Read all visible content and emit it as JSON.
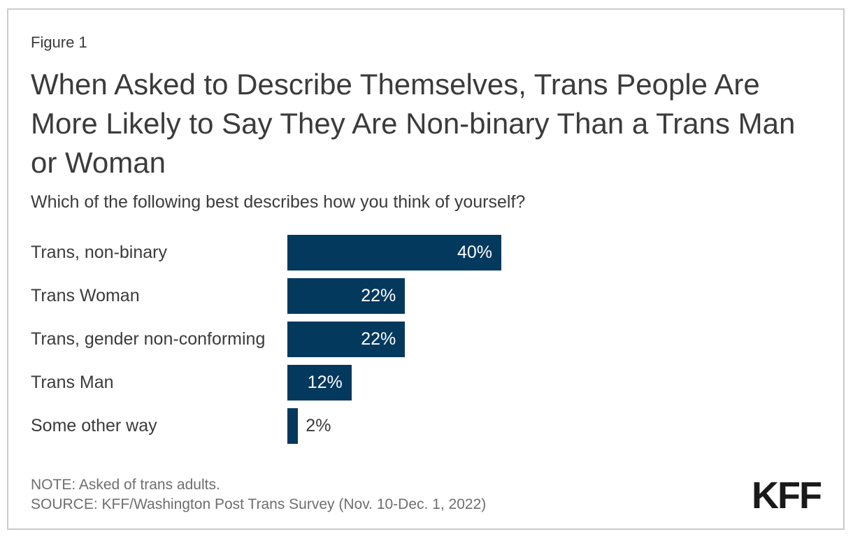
{
  "figure_label": "Figure 1",
  "title": "When Asked to Describe Themselves, Trans People Are More Likely to Say They Are Non-binary Than a Trans Man or Woman",
  "subtitle": "Which of the following best describes how you think of yourself?",
  "footer": {
    "note": "NOTE: Asked of trans adults.",
    "source": "SOURCE: KFF/Washington Post Trans Survey (Nov. 10-Dec. 1, 2022)",
    "logo_text": "KFF"
  },
  "colors": {
    "bar": "#04395E",
    "value_label_inside": "#FFFFFF",
    "value_label_outside": "#3B3B3B",
    "text": "#3B3B3B",
    "muted_text": "#6E6E6E",
    "frame_border": "#CBCBCB",
    "logo": "#1A1A1A"
  },
  "chart_data": {
    "type": "bar",
    "orientation": "horizontal",
    "title": "When Asked to Describe Themselves, Trans People Are More Likely to Say They Are Non-binary Than a Trans Man or Woman",
    "subtitle": "Which of the following best describes how you think of yourself?",
    "categories": [
      "Trans, non-binary",
      "Trans Woman",
      "Trans, gender non-conforming",
      "Trans Man",
      "Some other way"
    ],
    "values": [
      40,
      22,
      22,
      12,
      2
    ],
    "value_labels": [
      "40%",
      "22%",
      "22%",
      "12%",
      "2%"
    ],
    "xlim": [
      0,
      40
    ],
    "bar_color": "#04395E",
    "grid": false,
    "legend": false,
    "value_label_position": "inside-end (outside-end when bar too short)"
  }
}
